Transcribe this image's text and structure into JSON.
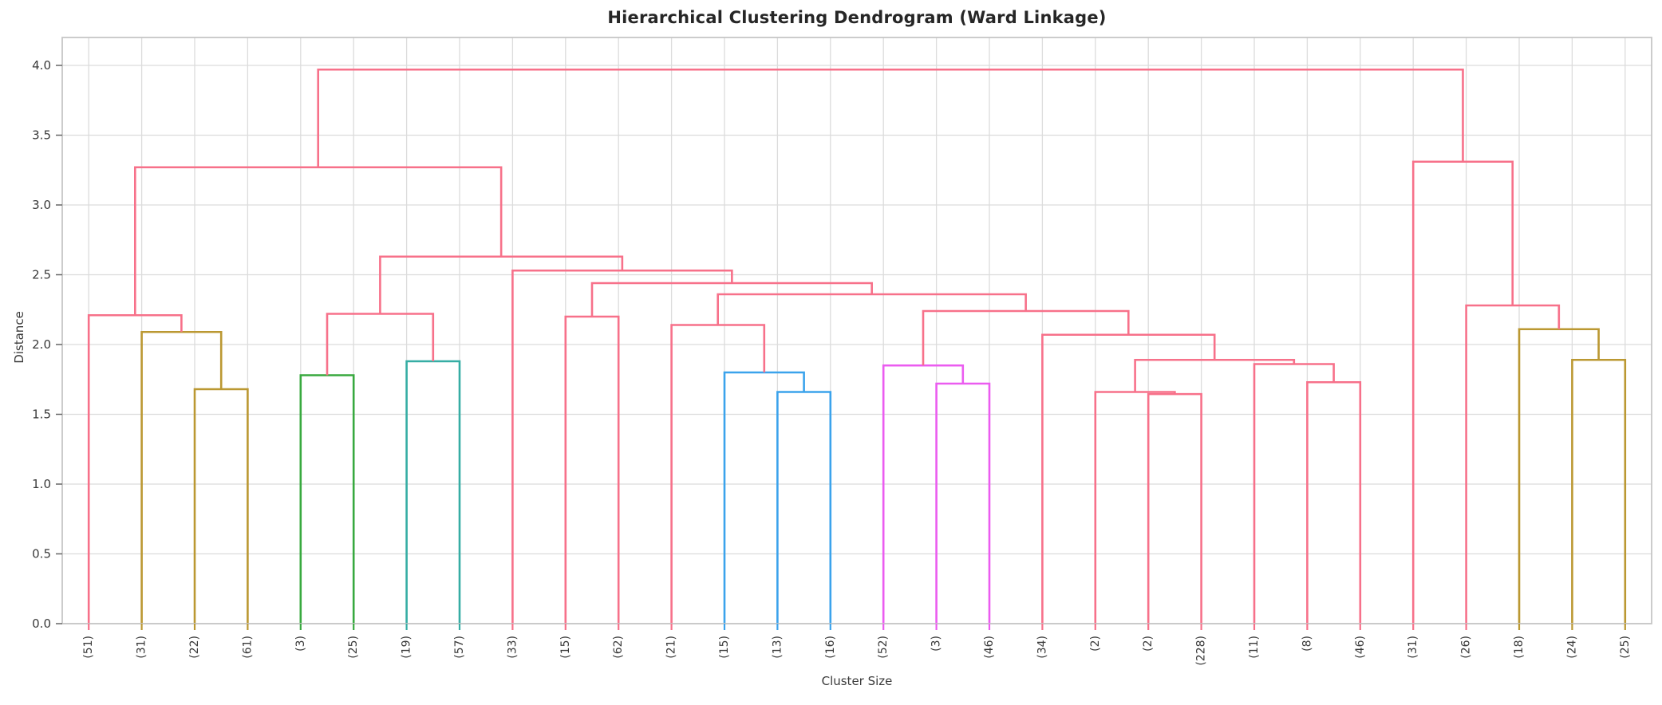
{
  "chart_data": {
    "type": "dendrogram",
    "title": "Hierarchical Clustering Dendrogram (Ward Linkage)",
    "xlabel": "Cluster Size",
    "ylabel": "Distance",
    "ylim": [
      0,
      4.2
    ],
    "grid": true,
    "ytick_values": [
      0,
      0.5,
      1.0,
      1.5,
      2.0,
      2.5,
      3.0,
      3.5,
      4.0
    ],
    "ytick_labels": [
      "0.0",
      "0.5",
      "1.0",
      "1.5",
      "2.0",
      "2.5",
      "3.0",
      "3.5",
      "4.0"
    ],
    "link_colors": {
      "pink": "#f7718a",
      "olive": "#bb9832",
      "green": "#38a93f",
      "teal": "#36ada4",
      "blue": "#3ba3ec",
      "magenta": "#eb5cf0"
    },
    "leaves": [
      {
        "label": "(51)",
        "color": "pink"
      },
      {
        "label": "(31)",
        "color": "olive"
      },
      {
        "label": "(22)",
        "color": "olive"
      },
      {
        "label": "(61)",
        "color": "olive"
      },
      {
        "label": "(3)",
        "color": "green"
      },
      {
        "label": "(25)",
        "color": "green"
      },
      {
        "label": "(19)",
        "color": "teal"
      },
      {
        "label": "(57)",
        "color": "teal"
      },
      {
        "label": "(33)",
        "color": "pink"
      },
      {
        "label": "(15)",
        "color": "pink"
      },
      {
        "label": "(62)",
        "color": "pink"
      },
      {
        "label": "(21)",
        "color": "pink"
      },
      {
        "label": "(15)",
        "color": "blue"
      },
      {
        "label": "(13)",
        "color": "blue"
      },
      {
        "label": "(16)",
        "color": "blue"
      },
      {
        "label": "(52)",
        "color": "magenta"
      },
      {
        "label": "(3)",
        "color": "magenta"
      },
      {
        "label": "(46)",
        "color": "magenta"
      },
      {
        "label": "(34)",
        "color": "pink"
      },
      {
        "label": "(2)",
        "color": "pink"
      },
      {
        "label": "(2)",
        "color": "pink"
      },
      {
        "label": "(228)",
        "color": "pink"
      },
      {
        "label": "(11)",
        "color": "pink"
      },
      {
        "label": "(8)",
        "color": "pink"
      },
      {
        "label": "(46)",
        "color": "pink"
      },
      {
        "label": "(31)",
        "color": "pink"
      },
      {
        "label": "(26)",
        "color": "pink"
      },
      {
        "label": "(18)",
        "color": "olive"
      },
      {
        "label": "(24)",
        "color": "olive"
      },
      {
        "label": "(25)",
        "color": "olive"
      }
    ],
    "merges": [
      {
        "a": "L20",
        "b": "L21",
        "height": 1.645,
        "color": "pink"
      },
      {
        "a": "L19",
        "b": "N0",
        "height": 1.66,
        "color": "pink"
      },
      {
        "a": "L13",
        "b": "L14",
        "height": 1.66,
        "color": "blue"
      },
      {
        "a": "L2",
        "b": "L3",
        "height": 1.68,
        "color": "olive"
      },
      {
        "a": "L16",
        "b": "L17",
        "height": 1.72,
        "color": "magenta"
      },
      {
        "a": "L23",
        "b": "L24",
        "height": 1.73,
        "color": "pink"
      },
      {
        "a": "L4",
        "b": "L5",
        "height": 1.78,
        "color": "green"
      },
      {
        "a": "L12",
        "b": "N2",
        "height": 1.8,
        "color": "blue"
      },
      {
        "a": "L15",
        "b": "N4",
        "height": 1.85,
        "color": "magenta"
      },
      {
        "a": "L22",
        "b": "N5",
        "height": 1.86,
        "color": "pink"
      },
      {
        "a": "L6",
        "b": "L7",
        "height": 1.88,
        "color": "teal"
      },
      {
        "a": "L28",
        "b": "L29",
        "height": 1.89,
        "color": "olive"
      },
      {
        "a": "N1",
        "b": "N9",
        "height": 1.89,
        "color": "pink"
      },
      {
        "a": "L1",
        "b": "N3",
        "height": 2.09,
        "color": "olive"
      },
      {
        "a": "L18",
        "b": "N12",
        "height": 2.07,
        "color": "pink"
      },
      {
        "a": "L27",
        "b": "N11",
        "height": 2.11,
        "color": "olive"
      },
      {
        "a": "L11",
        "b": "N7",
        "height": 2.14,
        "color": "pink"
      },
      {
        "a": "L9",
        "b": "L10",
        "height": 2.2,
        "color": "pink"
      },
      {
        "a": "L0",
        "b": "N13",
        "height": 2.21,
        "color": "pink"
      },
      {
        "a": "N6",
        "b": "N10",
        "height": 2.22,
        "color": "pink"
      },
      {
        "a": "N8",
        "b": "N14",
        "height": 2.24,
        "color": "pink"
      },
      {
        "a": "L26",
        "b": "N15",
        "height": 2.28,
        "color": "pink"
      },
      {
        "a": "N16",
        "b": "N20",
        "height": 2.36,
        "color": "pink"
      },
      {
        "a": "N17",
        "b": "N22",
        "height": 2.44,
        "color": "pink"
      },
      {
        "a": "L8",
        "b": "N23",
        "height": 2.53,
        "color": "pink"
      },
      {
        "a": "N19",
        "b": "N24",
        "height": 2.63,
        "color": "pink"
      },
      {
        "a": "N18",
        "b": "N25",
        "height": 3.27,
        "color": "pink"
      },
      {
        "a": "L25",
        "b": "N21",
        "height": 3.31,
        "color": "pink"
      },
      {
        "a": "N26",
        "b": "N27",
        "height": 3.97,
        "color": "pink"
      }
    ]
  }
}
